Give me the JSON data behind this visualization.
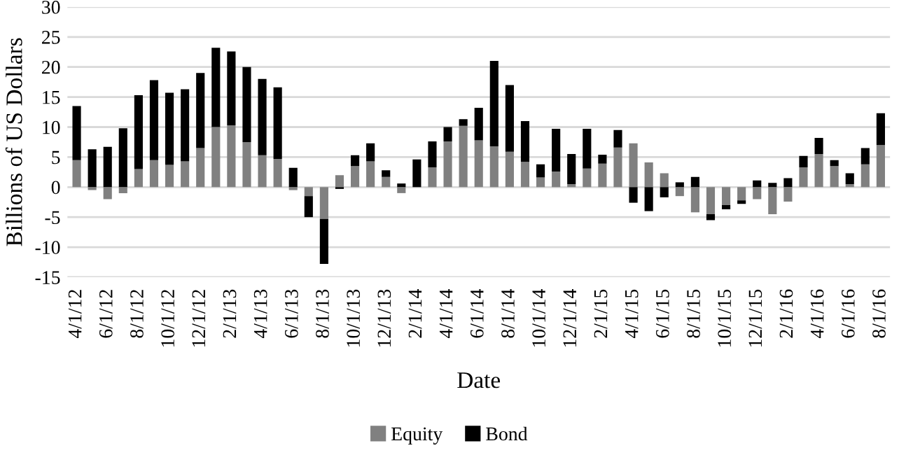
{
  "chart_data": {
    "type": "bar",
    "stacked": true,
    "xlabel": "Date",
    "ylabel": "Billions of US Dollars",
    "categories": [
      "4/1/12",
      null,
      "6/1/12",
      null,
      "8/1/12",
      null,
      "10/1/12",
      null,
      "12/1/12",
      null,
      "2/1/13",
      null,
      "4/1/13",
      null,
      "6/1/13",
      null,
      "8/1/13",
      null,
      "10/1/13",
      null,
      "12/1/13",
      null,
      "2/1/14",
      null,
      "4/1/14",
      null,
      "6/1/14",
      null,
      "8/1/14",
      null,
      "10/1/14",
      null,
      "12/1/14",
      null,
      "2/1/15",
      null,
      "4/1/15",
      null,
      "6/1/15",
      null,
      "8/1/15",
      null,
      "10/1/15",
      null,
      "12/1/15",
      null,
      "2/1/16",
      null,
      "4/1/16",
      null,
      "6/1/16",
      null,
      "8/1/16"
    ],
    "series": [
      {
        "name": "Equity",
        "color": "#808080",
        "values": [
          4.5,
          -0.5,
          -2,
          -1,
          3,
          4.5,
          3.7,
          4.3,
          6.5,
          10,
          10.3,
          7.5,
          5.3,
          4.7,
          -0.5,
          -1.5,
          -5.3,
          2,
          3.5,
          4.3,
          1.7,
          -1,
          0,
          3.3,
          7.6,
          10.2,
          7.8,
          6.8,
          5.9,
          4.2,
          1.6,
          2.6,
          0.5,
          3.1,
          3.9,
          6.6,
          7.3,
          4.1,
          2.3,
          -1.5,
          -4.2,
          -4.5,
          -3,
          -2.2,
          -2,
          -4.5,
          -2.4,
          3.3,
          5.5,
          3.5,
          0.5,
          3.8,
          7
        ]
      },
      {
        "name": "Bond",
        "color": "#000000",
        "values": [
          9,
          6.3,
          6.7,
          9.8,
          12.3,
          13.3,
          12,
          12,
          12.5,
          13.2,
          12.3,
          12.5,
          12.7,
          11.9,
          3.2,
          -3.5,
          -7.5,
          -0.3,
          1.8,
          3,
          1.1,
          0.6,
          4.6,
          4.3,
          2.4,
          1.1,
          5.4,
          14.2,
          11.1,
          6.8,
          2.2,
          7.1,
          5,
          6.6,
          1.5,
          2.9,
          -2.6,
          -4,
          -1.7,
          0.8,
          1.7,
          -1,
          -0.7,
          -0.6,
          1.1,
          0.7,
          1.5,
          1.9,
          2.7,
          1,
          1.8,
          2.7,
          5.3
        ]
      }
    ],
    "ylim": [
      -15,
      30
    ],
    "yticks": [
      -15,
      -10,
      -5,
      0,
      5,
      10,
      15,
      20,
      25,
      30
    ],
    "grid": "y",
    "legend": "bottom"
  }
}
